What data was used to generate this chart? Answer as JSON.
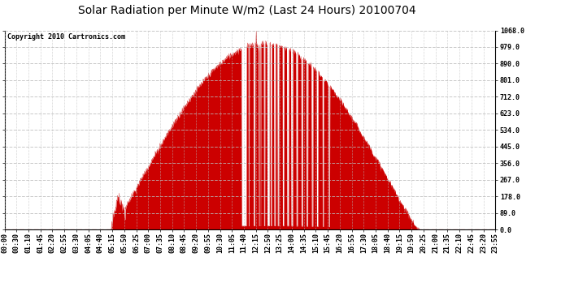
{
  "title": "Solar Radiation per Minute W/m2 (Last 24 Hours) 20100704",
  "copyright_text": "Copyright 2010 Cartronics.com",
  "background_color": "#ffffff",
  "plot_bg_color": "#ffffff",
  "fill_color": "#cc0000",
  "line_color": "#cc0000",
  "dashed_line_color": "#dd0000",
  "grid_color": "#bbbbbb",
  "ylim": [
    0.0,
    1068.0
  ],
  "yticks": [
    0.0,
    89.0,
    178.0,
    267.0,
    356.0,
    445.0,
    534.0,
    623.0,
    712.0,
    801.0,
    890.0,
    979.0,
    1068.0
  ],
  "xtick_labels": [
    "00:00",
    "00:30",
    "01:10",
    "01:45",
    "02:20",
    "02:55",
    "03:30",
    "04:05",
    "04:40",
    "05:15",
    "05:50",
    "06:25",
    "07:00",
    "07:35",
    "08:10",
    "08:45",
    "09:20",
    "09:55",
    "10:30",
    "11:05",
    "11:40",
    "12:15",
    "12:50",
    "13:25",
    "14:00",
    "14:35",
    "15:10",
    "15:45",
    "16:20",
    "16:55",
    "17:30",
    "18:05",
    "18:40",
    "19:15",
    "19:50",
    "20:25",
    "21:00",
    "21:35",
    "22:10",
    "22:45",
    "23:20",
    "23:55"
  ],
  "title_fontsize": 10,
  "tick_fontsize": 6,
  "copyright_fontsize": 6
}
